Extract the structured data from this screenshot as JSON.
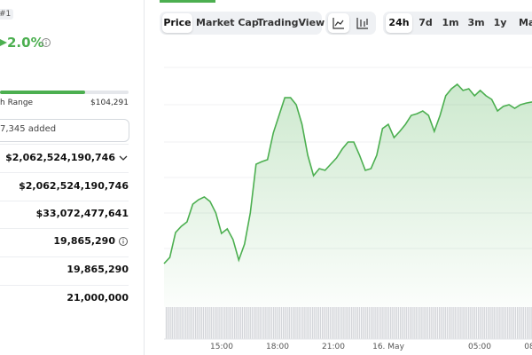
{
  "rank": "#1",
  "price_change": "2.0%",
  "range_label": "h Range",
  "range_high": "$104,291",
  "watchlist": "7,345 added",
  "stats": [
    "$2,062,524,190,746",
    "$2,062,524,190,746",
    "$33,072,477,641",
    "19,865,290",
    "19,865,290",
    "21,000,000"
  ],
  "tabs": [
    "Price",
    "Market Cap",
    "TradingView"
  ],
  "periods": [
    "24h",
    "7d",
    "1m",
    "3m",
    "1y",
    "Ma"
  ],
  "chart": {
    "type": "line",
    "x_labels": [
      "15:00",
      "18:00",
      "21:00",
      "16. May",
      "05:00",
      "08"
    ],
    "ylim": [
      0,
      100
    ],
    "color": "#4caf50",
    "values": [
      5.4,
      8.3,
      20,
      22.9,
      25,
      33.3,
      35.4,
      36.7,
      34.6,
      29.2,
      19.6,
      21.7,
      16.7,
      7.1,
      14.6,
      29.2,
      52.1,
      53.3,
      54.2,
      66.7,
      75,
      83.3,
      83.3,
      80,
      70.8,
      56.3,
      46.7,
      50,
      49.2,
      52.1,
      55,
      59.2,
      62.5,
      62.5,
      56.3,
      49.2,
      50,
      56.3,
      68.8,
      70.8,
      64.6,
      67.5,
      70.8,
      75,
      75.8,
      77.1,
      75,
      67.5,
      75,
      84.2,
      87.5,
      89.6,
      86.7,
      87.5,
      84.2,
      86.7,
      84.2,
      82.5,
      77.1,
      79.2,
      80,
      78.3,
      80,
      80.8,
      81.3
    ]
  }
}
